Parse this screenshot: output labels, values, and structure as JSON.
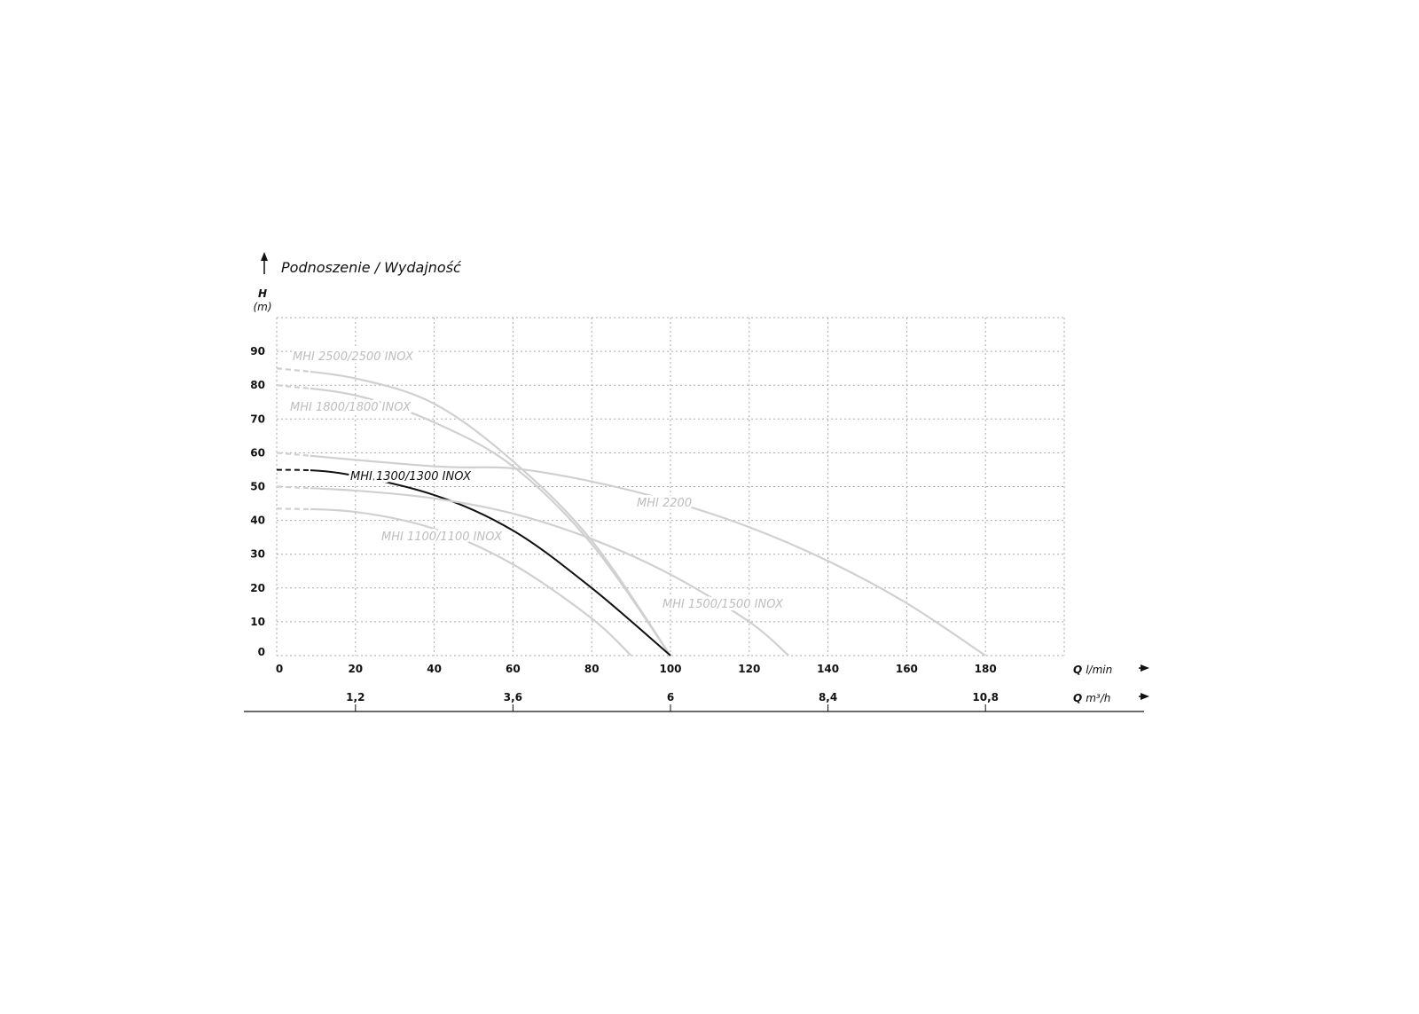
{
  "chart_data": {
    "type": "line",
    "title": "Podnoszenie / Wydajność",
    "ylabel": "H",
    "yunit": "(m)",
    "xlabel": "Q",
    "xunit": "l/min",
    "x2label": "Q",
    "x2unit": "m³/h",
    "xlim": [
      0,
      200
    ],
    "ylim": [
      0,
      100
    ],
    "grid": true,
    "grid_style": "dotted",
    "xticks": [
      0,
      20,
      40,
      60,
      80,
      100,
      120,
      140,
      160,
      180
    ],
    "xtick_labels": [
      "0",
      "20",
      "40",
      "60",
      "80",
      "100",
      "120",
      "140",
      "160",
      "180"
    ],
    "yticks": [
      0,
      10,
      20,
      30,
      40,
      50,
      60,
      70,
      80,
      90
    ],
    "ytick_labels": [
      "0",
      "10",
      "20",
      "30",
      "40",
      "50",
      "60",
      "70",
      "80",
      "90"
    ],
    "x2ticks": [
      20,
      60,
      100,
      140,
      180
    ],
    "x2tick_labels": [
      "1,2",
      "3,6",
      "6",
      "8,4",
      "10,8"
    ],
    "highlight_color": "#111111",
    "other_color": "#d0d0d0",
    "series": [
      {
        "name": "MHI 2500/2500 INOX",
        "highlight": false,
        "x": [
          0,
          20,
          40,
          60,
          80,
          100
        ],
        "y": [
          85,
          82,
          74.5,
          57.5,
          34,
          0
        ]
      },
      {
        "name": "MHI 1800/1800 INOX",
        "highlight": false,
        "x": [
          0,
          20,
          40,
          60,
          80,
          100
        ],
        "y": [
          80,
          77,
          69,
          56,
          33,
          0
        ]
      },
      {
        "name": "MHI 2200",
        "highlight": false,
        "x": [
          0,
          40,
          60,
          80,
          100,
          120,
          140,
          160,
          180
        ],
        "y": [
          60,
          56,
          55.4,
          51.5,
          45.7,
          38,
          28,
          15.5,
          0
        ]
      },
      {
        "name": "MHI 1300/1300 INOX",
        "highlight": true,
        "x": [
          0,
          16,
          40,
          60,
          80,
          100
        ],
        "y": [
          55,
          54,
          47.5,
          37,
          20,
          0
        ]
      },
      {
        "name": "MHI 1500/1500 INOX",
        "highlight": false,
        "x": [
          0,
          20,
          40,
          60,
          80,
          100,
          120,
          130
        ],
        "y": [
          50,
          48.8,
          46.5,
          42,
          34.5,
          24,
          10,
          0
        ]
      },
      {
        "name": "MHI 1100/1100 INOX",
        "highlight": false,
        "x": [
          0,
          20,
          40,
          60,
          80,
          90
        ],
        "y": [
          43.5,
          42.5,
          37.5,
          27,
          11,
          0
        ]
      }
    ]
  }
}
